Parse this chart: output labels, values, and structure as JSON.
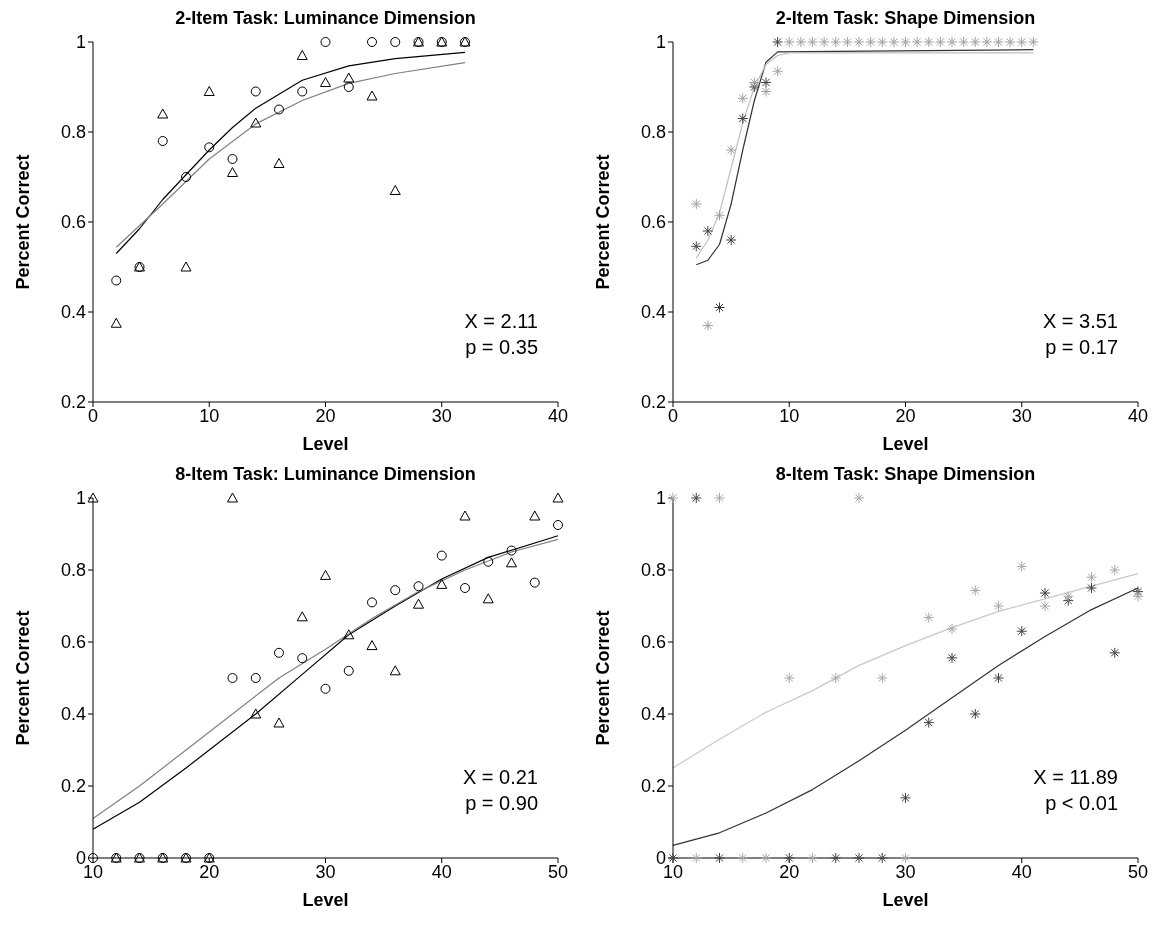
{
  "chart_data": [
    {
      "type": "scatter",
      "title": "2-Item Task: Luminance Dimension",
      "xlabel": "Level",
      "ylabel": "Percent Correct",
      "xlim": [
        0,
        40
      ],
      "xticks": [
        0,
        10,
        20,
        30,
        40
      ],
      "ylim": [
        0.2,
        1
      ],
      "yticks": [
        0.2,
        0.4,
        0.6,
        0.8,
        1
      ],
      "annotations": [
        "X = 2.11",
        "p = 0.35"
      ],
      "series": [
        {
          "type": "scatter",
          "marker": "circle",
          "color": "#000000",
          "x": [
            2,
            4,
            6,
            8,
            10,
            12,
            14,
            16,
            18,
            20,
            22,
            24,
            26,
            28,
            30,
            32
          ],
          "values": [
            0.47,
            0.5,
            0.78,
            0.7,
            0.766,
            0.74,
            0.89,
            0.85,
            0.89,
            1,
            0.9,
            1,
            1,
            1,
            1,
            1
          ]
        },
        {
          "type": "scatter",
          "marker": "triangle",
          "color": "#000000",
          "x": [
            2,
            4,
            6,
            8,
            10,
            12,
            14,
            16,
            18,
            20,
            22,
            24,
            26,
            28,
            30,
            32
          ],
          "values": [
            0.375,
            0.5,
            0.84,
            0.5,
            0.89,
            0.71,
            0.82,
            0.73,
            0.97,
            0.91,
            0.92,
            0.88,
            0.67,
            1,
            1,
            1
          ]
        },
        {
          "type": "line",
          "marker": "none",
          "color": "#000000",
          "x": [
            2,
            4,
            6,
            8,
            10,
            12,
            14,
            18,
            22,
            26,
            32
          ],
          "values": [
            0.53,
            0.585,
            0.65,
            0.705,
            0.76,
            0.81,
            0.853,
            0.915,
            0.947,
            0.963,
            0.977
          ]
        },
        {
          "type": "line",
          "marker": "none",
          "color": "#808080",
          "x": [
            2,
            6,
            8,
            10,
            14,
            18,
            22,
            26,
            32
          ],
          "values": [
            0.544,
            0.64,
            0.69,
            0.74,
            0.818,
            0.87,
            0.908,
            0.93,
            0.954
          ]
        }
      ]
    },
    {
      "type": "scatter",
      "title": "2-Item Task: Shape Dimension",
      "xlabel": "Level",
      "ylabel": "Percent Correct",
      "xlim": [
        0,
        40
      ],
      "xticks": [
        0,
        10,
        20,
        30,
        40
      ],
      "ylim": [
        0.2,
        1
      ],
      "yticks": [
        0.2,
        0.4,
        0.6,
        0.8,
        1
      ],
      "annotations": [
        "X = 3.51",
        "p = 0.17"
      ],
      "series": [
        {
          "type": "line",
          "marker": "none",
          "color": "#333333",
          "x": [
            2,
            3,
            4,
            5,
            6,
            7,
            8,
            9,
            31
          ],
          "values": [
            0.505,
            0.515,
            0.55,
            0.64,
            0.76,
            0.87,
            0.955,
            0.978,
            0.983
          ]
        },
        {
          "type": "line",
          "marker": "none",
          "color": "#c0c0c0",
          "x": [
            2,
            3,
            4,
            5,
            6,
            7,
            8,
            9,
            10,
            31
          ],
          "values": [
            0.52,
            0.56,
            0.62,
            0.72,
            0.82,
            0.9,
            0.95,
            0.97,
            0.976,
            0.976
          ]
        },
        {
          "type": "scatter",
          "marker": "cross",
          "color": "#404040",
          "x": [
            2,
            3,
            4,
            5,
            6,
            7,
            8,
            9
          ],
          "values": [
            0.546,
            0.58,
            0.41,
            0.56,
            0.83,
            0.9,
            0.91,
            1
          ]
        },
        {
          "type": "scatter",
          "marker": "cross",
          "color": "#a0a0a0",
          "x": [
            2,
            3,
            4,
            5,
            6,
            7,
            8,
            9,
            10,
            11,
            12,
            13,
            14,
            15,
            16,
            17,
            18,
            19,
            20,
            21,
            22,
            23,
            24,
            25,
            26,
            27,
            28,
            29,
            30,
            31
          ],
          "values": [
            0.64,
            0.37,
            0.615,
            0.76,
            0.875,
            0.91,
            0.89,
            0.935,
            1,
            1,
            1,
            1,
            1,
            1,
            1,
            1,
            1,
            1,
            1,
            1,
            1,
            1,
            1,
            1,
            1,
            1,
            1,
            1,
            1,
            1
          ]
        }
      ]
    },
    {
      "type": "scatter",
      "title": "8-Item Task: Luminance Dimension",
      "xlabel": "Level",
      "ylabel": "Percent Correct",
      "xlim": [
        10,
        50
      ],
      "xticks": [
        10,
        20,
        30,
        40,
        50
      ],
      "ylim": [
        0,
        1
      ],
      "yticks": [
        0,
        0.2,
        0.4,
        0.6,
        0.8,
        1
      ],
      "annotations": [
        "X = 0.21",
        "p = 0.90"
      ],
      "series": [
        {
          "type": "scatter",
          "marker": "circle",
          "color": "#000000",
          "x": [
            10,
            12,
            14,
            16,
            18,
            20,
            22,
            24,
            26,
            28,
            30,
            32,
            34,
            36,
            38,
            40,
            42,
            44,
            46,
            48,
            50
          ],
          "values": [
            0,
            0,
            0,
            0,
            0,
            0,
            0.5,
            0.5,
            0.57,
            0.555,
            0.47,
            0.52,
            0.71,
            0.744,
            0.755,
            0.84,
            0.75,
            0.823,
            0.854,
            0.765,
            0.925
          ]
        },
        {
          "type": "scatter",
          "marker": "triangle",
          "color": "#000000",
          "x": [
            10,
            12,
            14,
            16,
            18,
            20,
            22,
            24,
            26,
            28,
            30,
            32,
            34,
            36,
            38,
            40,
            42,
            44,
            46,
            48,
            50
          ],
          "values": [
            1,
            0,
            0,
            0,
            0,
            0,
            1,
            0.4,
            0.375,
            0.67,
            0.785,
            0.62,
            0.59,
            0.52,
            0.705,
            0.76,
            0.95,
            0.72,
            0.82,
            0.95,
            1
          ]
        },
        {
          "type": "line",
          "marker": "none",
          "color": "#000000",
          "x": [
            10,
            14,
            18,
            20,
            24,
            28,
            32,
            36,
            40,
            44,
            50
          ],
          "values": [
            0.08,
            0.155,
            0.25,
            0.3,
            0.4,
            0.51,
            0.62,
            0.7,
            0.775,
            0.835,
            0.895
          ]
        },
        {
          "type": "line",
          "marker": "none",
          "color": "#808080",
          "x": [
            10,
            14,
            18,
            22,
            26,
            30,
            34,
            38,
            42,
            46,
            50
          ],
          "values": [
            0.11,
            0.2,
            0.3,
            0.4,
            0.5,
            0.58,
            0.665,
            0.74,
            0.8,
            0.85,
            0.885
          ]
        }
      ]
    },
    {
      "type": "scatter",
      "title": "8-Item Task: Shape Dimension",
      "xlabel": "Level",
      "ylabel": "Percent Correct",
      "xlim": [
        10,
        50
      ],
      "xticks": [
        10,
        20,
        30,
        40,
        50
      ],
      "ylim": [
        0,
        1
      ],
      "yticks": [
        0,
        0.2,
        0.4,
        0.6,
        0.8,
        1
      ],
      "annotations": [
        "X = 11.89",
        "p < 0.01"
      ],
      "series": [
        {
          "type": "line",
          "marker": "none",
          "color": "#333333",
          "x": [
            10,
            14,
            18,
            22,
            26,
            30,
            34,
            38,
            42,
            46,
            50
          ],
          "values": [
            0.035,
            0.07,
            0.125,
            0.19,
            0.27,
            0.355,
            0.445,
            0.535,
            0.615,
            0.69,
            0.75
          ]
        },
        {
          "type": "line",
          "marker": "none",
          "color": "#c8c8c8",
          "x": [
            10,
            14,
            18,
            22,
            26,
            30,
            34,
            38,
            42,
            46,
            50
          ],
          "values": [
            0.25,
            0.33,
            0.405,
            0.465,
            0.535,
            0.59,
            0.64,
            0.685,
            0.72,
            0.755,
            0.79
          ]
        },
        {
          "type": "scatter",
          "marker": "cross",
          "color": "#404040",
          "x": [
            10,
            12,
            14,
            20,
            24,
            26,
            28,
            30,
            32,
            34,
            36,
            38,
            40,
            42,
            44,
            46,
            48,
            50
          ],
          "values": [
            0,
            1,
            0,
            0,
            0,
            0,
            0,
            0.167,
            0.376,
            0.556,
            0.4,
            0.5,
            0.63,
            0.736,
            0.715,
            0.75,
            0.57,
            0.74
          ]
        },
        {
          "type": "scatter",
          "marker": "cross",
          "color": "#a8a8a8",
          "x": [
            10,
            12,
            14,
            16,
            18,
            20,
            22,
            24,
            26,
            28,
            30,
            32,
            34,
            36,
            38,
            40,
            42,
            44,
            46,
            48,
            50
          ],
          "values": [
            1,
            0,
            1,
            0,
            0,
            0.5,
            0,
            0.5,
            1,
            0.5,
            0,
            0.668,
            0.636,
            0.743,
            0.7,
            0.81,
            0.7,
            0.727,
            0.78,
            0.8,
            0.727
          ]
        }
      ]
    }
  ]
}
